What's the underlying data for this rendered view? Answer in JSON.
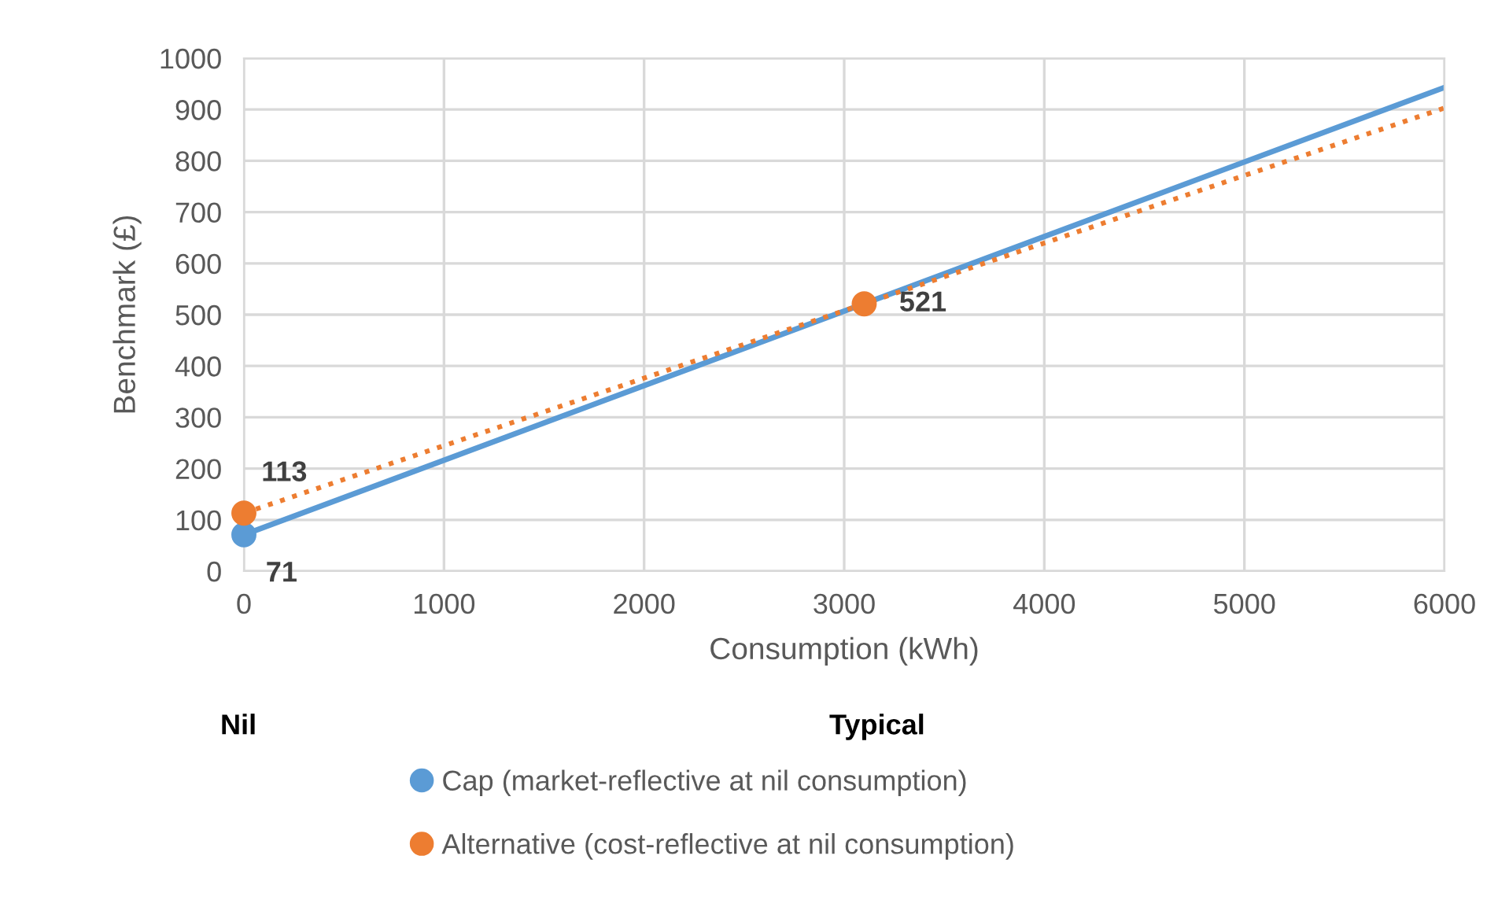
{
  "chart_data": {
    "type": "scatter",
    "xlabel": "Consumption (kWh)",
    "ylabel": "Benchmark (£)",
    "xlim": [
      0,
      6000
    ],
    "ylim": [
      0,
      1000
    ],
    "xticks": [
      0,
      1000,
      2000,
      3000,
      4000,
      5000,
      6000
    ],
    "yticks": [
      0,
      100,
      200,
      300,
      400,
      500,
      600,
      700,
      800,
      900,
      1000
    ],
    "grid": true,
    "legend": "bottom",
    "annotations": [
      "Nil",
      "Typical"
    ],
    "series": [
      {
        "type": "line",
        "color": "#5b9bd5",
        "x": [
          0,
          6000
        ],
        "values": [
          71,
          943
        ],
        "line_style": "solid",
        "marker": "none"
      },
      {
        "type": "line",
        "color": "#ed7d31",
        "x": [
          0,
          6000
        ],
        "values": [
          113,
          903
        ],
        "line_style": "dotted",
        "marker": "none"
      },
      {
        "name": "Cap (market-reflective at nil consumption)",
        "color": "#5b9bd5",
        "x": [
          0
        ],
        "values": [
          71
        ],
        "value_labels": [
          "71"
        ],
        "marker": "circle"
      },
      {
        "name": "Alternative (cost-reflective at nil consumption)",
        "color": "#ed7d31",
        "x": [
          0,
          3100
        ],
        "values": [
          113,
          521
        ],
        "value_labels": [
          "113",
          "521"
        ],
        "marker": "circle"
      }
    ]
  }
}
